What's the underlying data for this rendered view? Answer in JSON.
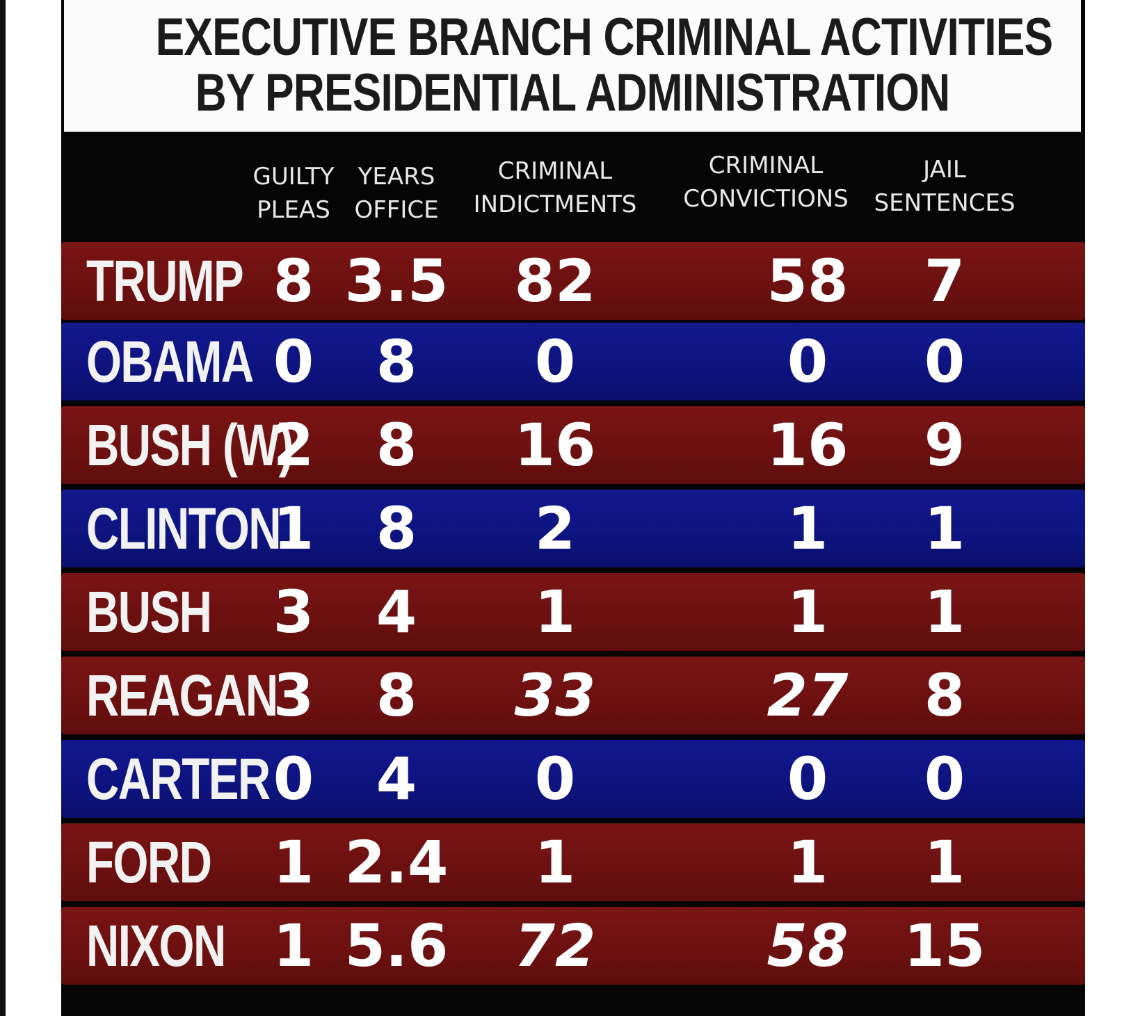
{
  "chart_data": {
    "type": "table",
    "title": "EXECUTIVE BRANCH CRIMINAL ACTIVITIES BY PRESIDENTIAL ADMINISTRATION",
    "title_lines": [
      "EXECUTIVE BRANCH CRIMINAL ACTIVITIES",
      "BY PRESIDENTIAL ADMINISTRATION"
    ],
    "columns": [
      {
        "key": "guilty_pleas",
        "lines": [
          "GUILTY",
          "PLEAS"
        ]
      },
      {
        "key": "years_office",
        "lines": [
          "YEARS",
          "OFFICE"
        ]
      },
      {
        "key": "criminal_indictments",
        "lines": [
          "CRIMINAL",
          "INDICTMENTS"
        ]
      },
      {
        "key": "criminal_convictions",
        "lines": [
          "CRIMINAL",
          "CONVICTIONS"
        ]
      },
      {
        "key": "jail_sentences",
        "lines": [
          "JAIL",
          "SENTENCES"
        ]
      }
    ],
    "rows": [
      {
        "name": "TRUMP",
        "party": "red",
        "values": [
          "8",
          "3.5",
          "82",
          "58",
          "7"
        ]
      },
      {
        "name": "OBAMA",
        "party": "blue",
        "values": [
          "0",
          "8",
          "0",
          "0",
          "0"
        ]
      },
      {
        "name": "BUSH (W)",
        "party": "red",
        "values": [
          "2",
          "8",
          "16",
          "16",
          "9"
        ]
      },
      {
        "name": "CLINTON",
        "party": "blue",
        "values": [
          "1",
          "8",
          "2",
          "1",
          "1"
        ]
      },
      {
        "name": "BUSH",
        "party": "red",
        "values": [
          "3",
          "4",
          "1",
          "1",
          "1"
        ]
      },
      {
        "name": "REAGAN",
        "party": "red",
        "values": [
          "3",
          "8",
          "33",
          "27",
          "8"
        ]
      },
      {
        "name": "CARTER",
        "party": "blue",
        "values": [
          "0",
          "4",
          "0",
          "0",
          "0"
        ]
      },
      {
        "name": "FORD",
        "party": "red",
        "values": [
          "1",
          "2.4",
          "1",
          "1",
          "1"
        ]
      },
      {
        "name": "NIXON",
        "party": "red",
        "values": [
          "1",
          "5.6",
          "72",
          "58",
          "15"
        ]
      }
    ],
    "colors": {
      "red_row": "#6c1010",
      "blue_row": "#0d137e",
      "header_band": "#050505",
      "title_background": "#fbfbfb",
      "title_text": "#1b1b1b",
      "value_text": "#ffffff"
    }
  }
}
